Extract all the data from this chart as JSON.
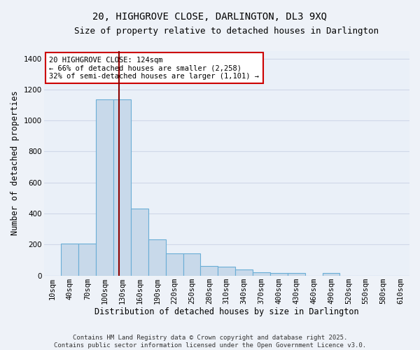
{
  "title": "20, HIGHGROVE CLOSE, DARLINGTON, DL3 9XQ",
  "subtitle": "Size of property relative to detached houses in Darlington",
  "xlabel": "Distribution of detached houses by size in Darlington",
  "ylabel": "Number of detached properties",
  "categories": [
    "10sqm",
    "40sqm",
    "70sqm",
    "100sqm",
    "130sqm",
    "160sqm",
    "190sqm",
    "220sqm",
    "250sqm",
    "280sqm",
    "310sqm",
    "340sqm",
    "370sqm",
    "400sqm",
    "430sqm",
    "460sqm",
    "490sqm",
    "520sqm",
    "550sqm",
    "580sqm",
    "610sqm"
  ],
  "values": [
    0,
    205,
    205,
    1135,
    1135,
    430,
    235,
    145,
    145,
    60,
    55,
    40,
    20,
    15,
    15,
    0,
    15,
    0,
    0,
    0,
    0
  ],
  "bar_color": "#c8d9ea",
  "bar_edge_color": "#6aaed6",
  "vline_x": 124,
  "vline_color": "#8b0000",
  "annotation_title": "20 HIGHGROVE CLOSE: 124sqm",
  "annotation_line1": "← 66% of detached houses are smaller (2,258)",
  "annotation_line2": "32% of semi-detached houses are larger (1,101) →",
  "annotation_box_color": "#ffffff",
  "annotation_border_color": "#cc0000",
  "ylim": [
    0,
    1450
  ],
  "yticks": [
    0,
    200,
    400,
    600,
    800,
    1000,
    1200,
    1400
  ],
  "footnote1": "Contains HM Land Registry data © Crown copyright and database right 2025.",
  "footnote2": "Contains public sector information licensed under the Open Government Licence v3.0.",
  "bg_color": "#eef2f8",
  "plot_bg_color": "#eaf0f8",
  "grid_color": "#d0d8e8",
  "title_fontsize": 10,
  "subtitle_fontsize": 9,
  "axis_label_fontsize": 8.5,
  "tick_fontsize": 7.5,
  "annotation_fontsize": 7.5,
  "footnote_fontsize": 6.5
}
